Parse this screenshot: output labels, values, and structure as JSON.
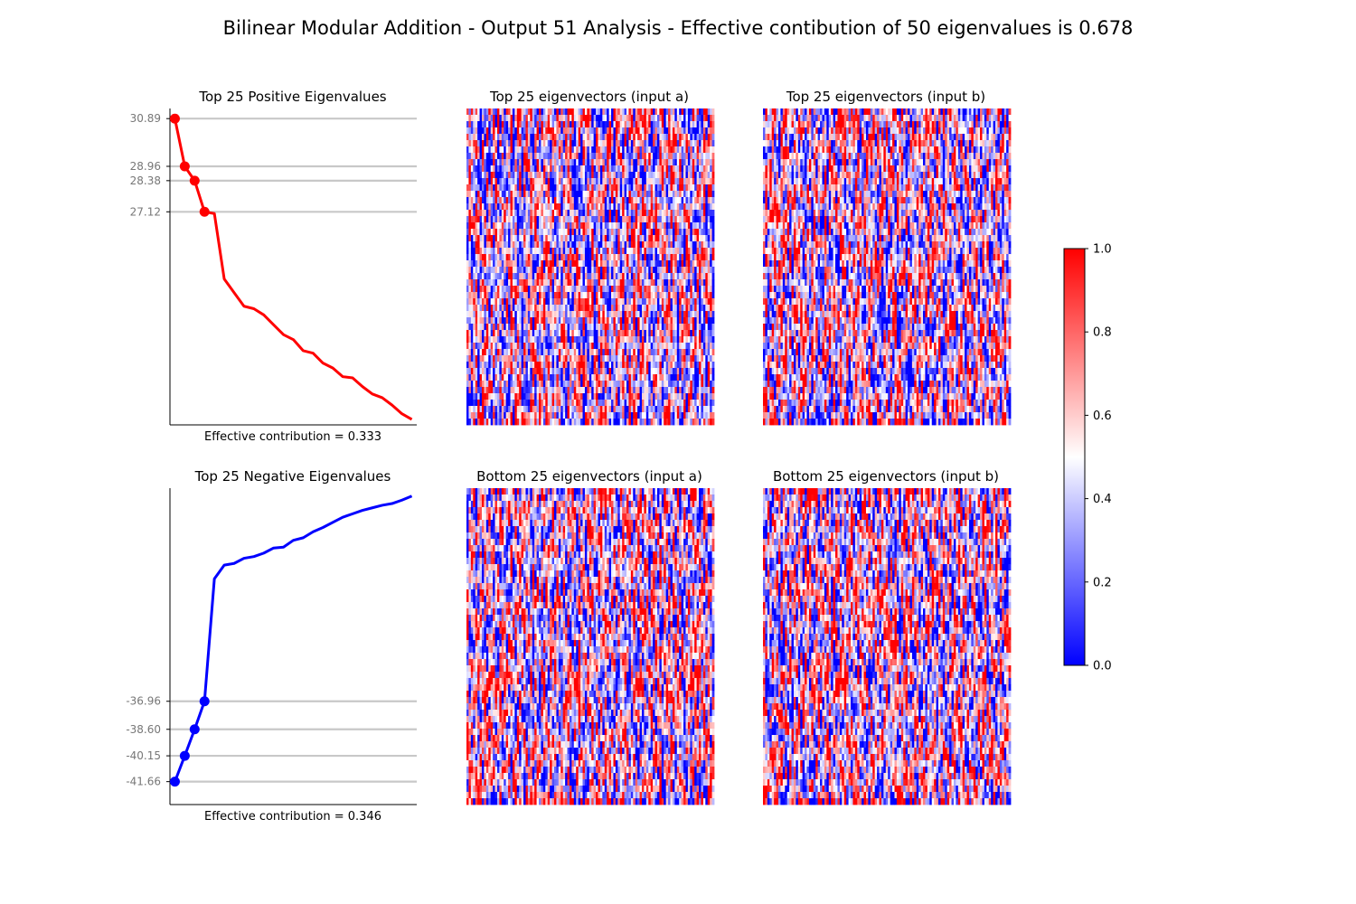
{
  "figure": {
    "title": "Bilinear Modular Addition - Output 51 Analysis - Effective contibution of 50 eigenvalues is 0.678"
  },
  "chart_data": [
    {
      "type": "line",
      "title": "Top 25 Positive Eigenvalues",
      "xlabel": "Effective contribution = 0.333",
      "ylabel": "",
      "color": "#ff0000",
      "x": [
        0,
        1,
        2,
        3,
        4,
        5,
        6,
        7,
        8,
        9,
        10,
        11,
        12,
        13,
        14,
        15,
        16,
        17,
        18,
        19,
        20,
        21,
        22,
        23,
        24
      ],
      "values": [
        30.89,
        28.96,
        28.38,
        27.12,
        27.05,
        24.4,
        23.85,
        23.3,
        23.2,
        22.95,
        22.55,
        22.15,
        21.95,
        21.5,
        21.4,
        21.0,
        20.8,
        20.45,
        20.4,
        20.05,
        19.75,
        19.6,
        19.3,
        18.95,
        18.72
      ],
      "highlighted_points": [
        30.89,
        28.96,
        28.38,
        27.12
      ],
      "ytick_labels": [
        "30.89",
        "28.96",
        "28.38",
        "27.12"
      ],
      "ylim": [
        18.5,
        31.3
      ],
      "grid": "horizontal lines at highlighted values"
    },
    {
      "type": "line",
      "title": "Top 25 Negative Eigenvalues",
      "xlabel": "Effective contribution = 0.346",
      "ylabel": "",
      "color": "#0000ff",
      "x": [
        0,
        1,
        2,
        3,
        4,
        5,
        6,
        7,
        8,
        9,
        10,
        11,
        12,
        13,
        14,
        15,
        16,
        17,
        18,
        19,
        20,
        21,
        22,
        23,
        24
      ],
      "values": [
        -41.66,
        -40.15,
        -38.6,
        -36.96,
        -29.8,
        -29.0,
        -28.9,
        -28.6,
        -28.5,
        -28.3,
        -28.0,
        -27.95,
        -27.55,
        -27.4,
        -27.05,
        -26.8,
        -26.5,
        -26.2,
        -26.0,
        -25.8,
        -25.65,
        -25.5,
        -25.4,
        -25.2,
        -24.96
      ],
      "highlighted_points": [
        -41.66,
        -40.15,
        -38.6,
        -36.96
      ],
      "ytick_labels": [
        "-36.96",
        "-38.60",
        "-40.15",
        "-41.66"
      ],
      "ylim": [
        -43.0,
        -24.5
      ],
      "grid": "horizontal lines at highlighted values"
    },
    {
      "type": "heatmap",
      "title": "Top 25 eigenvectors (input a)",
      "colormap": "bwr",
      "axes_visible": false
    },
    {
      "type": "heatmap",
      "title": "Top 25 eigenvectors (input b)",
      "colormap": "bwr",
      "axes_visible": false
    },
    {
      "type": "heatmap",
      "title": "Bottom 25 eigenvectors (input a)",
      "colormap": "bwr",
      "axes_visible": false
    },
    {
      "type": "heatmap",
      "title": "Bottom 25 eigenvectors (input b)",
      "colormap": "bwr",
      "axes_visible": false
    }
  ],
  "colorbar": {
    "ticks": [
      "0.0",
      "0.2",
      "0.4",
      "0.6",
      "0.8",
      "1.0"
    ],
    "tick_values": [
      0.0,
      0.2,
      0.4,
      0.6,
      0.8,
      1.0
    ],
    "low_color": "#0000ff",
    "mid_color": "#ffffff",
    "high_color": "#ff0000"
  },
  "colors": {
    "positive_line": "#ff0000",
    "negative_line": "#0000ff",
    "hline": "#c8c8c8",
    "tick_label": "#777777"
  }
}
